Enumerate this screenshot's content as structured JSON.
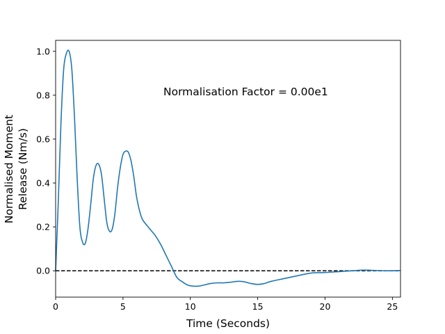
{
  "chart_data": {
    "type": "line",
    "title": "",
    "xlabel": "Time (Seconds)",
    "ylabel_lines": [
      "Normalised Moment",
      "Release (Nm/s)"
    ],
    "annotation": "Normalisation Factor = 0.00e1",
    "xlim": [
      0,
      25.6
    ],
    "ylim": [
      -0.12,
      1.05
    ],
    "xticks": [
      0,
      5,
      10,
      15,
      20,
      25
    ],
    "yticks": [
      0.0,
      0.2,
      0.4,
      0.6,
      0.8,
      1.0
    ],
    "xtick_labels": [
      "0",
      "5",
      "10",
      "15",
      "20",
      "25"
    ],
    "ytick_labels": [
      "0.0",
      "0.2",
      "0.4",
      "0.6",
      "0.8",
      "1.0"
    ],
    "reference_line": {
      "y": 0.0,
      "style": "dashed",
      "color": "#000000"
    },
    "grid": false,
    "series": [
      {
        "color": "#1f77b4",
        "x": [
          0,
          0.2,
          0.4,
          0.6,
          0.8,
          1.0,
          1.2,
          1.4,
          1.6,
          1.8,
          2.0,
          2.2,
          2.4,
          2.6,
          2.8,
          3.0,
          3.2,
          3.4,
          3.6,
          3.8,
          4.0,
          4.2,
          4.4,
          4.6,
          4.8,
          5.0,
          5.2,
          5.4,
          5.6,
          5.8,
          6.0,
          6.2,
          6.4,
          6.6,
          6.8,
          7.0,
          7.4,
          7.8,
          8.2,
          8.6,
          9.0,
          9.4,
          9.8,
          10.2,
          10.6,
          11.0,
          11.5,
          12.0,
          12.5,
          13.0,
          13.5,
          14.0,
          14.5,
          15.0,
          15.5,
          16.0,
          17.0,
          18.0,
          19.0,
          20.0,
          21.0,
          22.0,
          22.8,
          23.5,
          24.5,
          25.6
        ],
        "values": [
          0.0,
          0.32,
          0.68,
          0.92,
          0.99,
          1.0,
          0.92,
          0.7,
          0.42,
          0.2,
          0.13,
          0.125,
          0.19,
          0.3,
          0.42,
          0.48,
          0.485,
          0.44,
          0.33,
          0.22,
          0.18,
          0.19,
          0.26,
          0.38,
          0.47,
          0.53,
          0.545,
          0.54,
          0.5,
          0.43,
          0.34,
          0.28,
          0.24,
          0.22,
          0.205,
          0.19,
          0.16,
          0.12,
          0.07,
          0.02,
          -0.03,
          -0.05,
          -0.065,
          -0.07,
          -0.07,
          -0.065,
          -0.058,
          -0.055,
          -0.055,
          -0.052,
          -0.048,
          -0.05,
          -0.058,
          -0.062,
          -0.058,
          -0.048,
          -0.035,
          -0.022,
          -0.01,
          -0.008,
          -0.004,
          0.0,
          0.003,
          0.002,
          0.0,
          0.001
        ]
      }
    ]
  }
}
